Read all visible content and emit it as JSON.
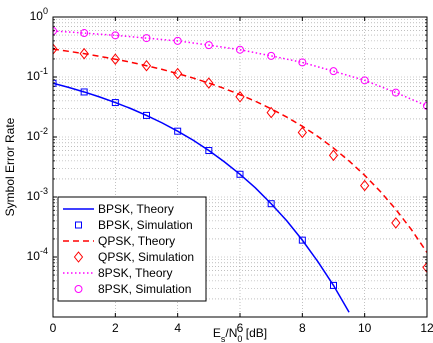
{
  "chart_data": {
    "type": "line",
    "xlabel": "E_s/N_0 [dB]",
    "xlabel_main": "E",
    "xlabel_sub1": "s",
    "xlabel_mid": "/N",
    "xlabel_sub2": "0",
    "xlabel_tail": " [dB]",
    "ylabel": "Symbol Error Rate",
    "y_scale": "log",
    "xlim": [
      0,
      12
    ],
    "ylim_exp": [
      -5,
      0
    ],
    "x_ticks": [
      0,
      2,
      4,
      6,
      8,
      10,
      12
    ],
    "y_tick_base": "10",
    "y_tick_exponents": [
      "-4",
      "-3",
      "-2",
      "-1",
      "0"
    ],
    "grid": true,
    "legend_position": "bottom-left",
    "series": [
      {
        "name": "BPSK, Theory",
        "style": "solid",
        "color": "#0000ff",
        "x": [
          0,
          0.5,
          1,
          1.5,
          2,
          2.5,
          3,
          3.5,
          4,
          4.5,
          5,
          5.5,
          6,
          6.5,
          7,
          7.5,
          8,
          8.5,
          9,
          9.5
        ],
        "y": [
          0.0786,
          0.0671,
          0.0563,
          0.0464,
          0.0375,
          0.0297,
          0.0229,
          0.0172,
          0.0125,
          0.00882,
          0.00595,
          0.00385,
          0.00239,
          0.00141,
          0.000773,
          0.000402,
          0.000191,
          8.34e-05,
          3.36e-05,
          1.2e-05
        ]
      },
      {
        "name": "BPSK, Simulation",
        "style": "marker-square",
        "color": "#0000ff",
        "x": [
          0,
          1,
          2,
          3,
          4,
          5,
          6,
          7,
          8,
          9
        ],
        "y": [
          0.0786,
          0.0563,
          0.0375,
          0.0229,
          0.0125,
          0.00595,
          0.00239,
          0.000773,
          0.000191,
          3.36e-05
        ]
      },
      {
        "name": "QPSK, Theory",
        "style": "dashed",
        "color": "#ff0000",
        "x": [
          0,
          0.5,
          1,
          1.5,
          2,
          2.5,
          3,
          3.5,
          4,
          4.5,
          5,
          5.5,
          6,
          6.5,
          7,
          7.5,
          8,
          8.5,
          9,
          9.5,
          10,
          10.5,
          11,
          11.5,
          12
        ],
        "y": [
          0.292,
          0.268,
          0.245,
          0.221,
          0.198,
          0.176,
          0.154,
          0.134,
          0.114,
          0.096,
          0.0793,
          0.0642,
          0.0508,
          0.0393,
          0.0295,
          0.0215,
          0.0151,
          0.0102,
          0.00654,
          0.00399,
          0.0023,
          0.00124,
          0.000621,
          0.000286,
          0.000119
        ]
      },
      {
        "name": "QPSK, Simulation",
        "style": "marker-diamond",
        "color": "#ff0000",
        "x": [
          0,
          1,
          2,
          3,
          4,
          5,
          6,
          7,
          8,
          9,
          10,
          11,
          12
        ],
        "y": [
          0.292,
          0.245,
          0.198,
          0.154,
          0.114,
          0.0793,
          0.0468,
          0.0255,
          0.0119,
          0.00495,
          0.00155,
          0.00037,
          6.7e-05
        ]
      },
      {
        "name": "8PSK, Theory",
        "style": "dotted",
        "color": "#ff00ff",
        "x": [
          0,
          1,
          2,
          3,
          4,
          5,
          6,
          7,
          8,
          9,
          10,
          11,
          12
        ],
        "y": [
          0.585,
          0.54,
          0.495,
          0.445,
          0.4,
          0.34,
          0.285,
          0.225,
          0.175,
          0.125,
          0.088,
          0.055,
          0.033
        ]
      },
      {
        "name": "8PSK, Simulation",
        "style": "marker-circle",
        "color": "#ff00ff",
        "x": [
          0,
          1,
          2,
          3,
          4,
          5,
          6,
          7,
          8,
          9,
          10,
          11,
          12
        ],
        "y": [
          0.585,
          0.54,
          0.495,
          0.445,
          0.4,
          0.34,
          0.285,
          0.225,
          0.175,
          0.125,
          0.088,
          0.055,
          0.033
        ]
      }
    ]
  }
}
